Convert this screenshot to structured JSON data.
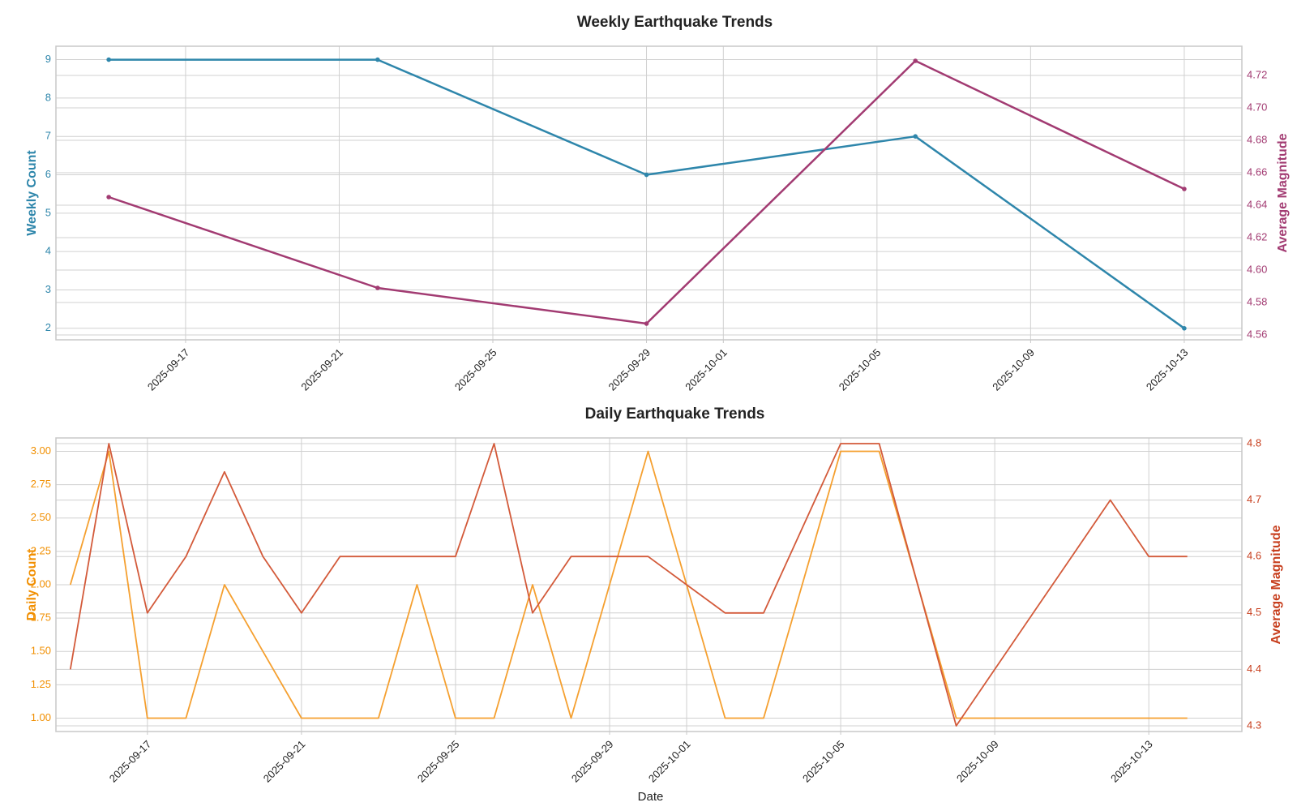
{
  "chart_data": [
    {
      "type": "line",
      "title": "Weekly Earthquake Trends",
      "xlabel": "",
      "x": [
        "2025-09-15",
        "2025-09-22",
        "2025-09-29",
        "2025-10-06",
        "2025-10-13"
      ],
      "xticks": [
        "2025-09-17",
        "2025-09-21",
        "2025-09-25",
        "2025-09-29",
        "2025-10-01",
        "2025-10-05",
        "2025-10-09",
        "2025-10-13"
      ],
      "xlim": [
        "2025-09-13T15:00",
        "2025-10-14T12:00"
      ],
      "grid": true,
      "left_axis": {
        "label": "Weekly Count",
        "color": "#2E86AB",
        "ylim": [
          1.7,
          9.35
        ],
        "ticks": [
          2,
          3,
          4,
          5,
          6,
          7,
          8,
          9
        ],
        "tick_format": "int"
      },
      "right_axis": {
        "label": "Average Magnitude",
        "color": "#A23B72",
        "ylim": [
          4.557,
          4.738
        ],
        "ticks": [
          4.56,
          4.58,
          4.6,
          4.62,
          4.64,
          4.66,
          4.68,
          4.7,
          4.72
        ],
        "tick_format": "2dp"
      },
      "series": [
        {
          "axis": "left",
          "color": "#2E86AB",
          "markers": true,
          "values": [
            9,
            9,
            6,
            7,
            2
          ]
        },
        {
          "axis": "right",
          "color": "#A23B72",
          "markers": true,
          "values": [
            4.645,
            4.589,
            4.567,
            4.729,
            4.65
          ]
        }
      ]
    },
    {
      "type": "line",
      "title": "Daily Earthquake Trends",
      "xlabel": "Date",
      "x": [
        "2025-09-15",
        "2025-09-16",
        "2025-09-17",
        "2025-09-18",
        "2025-09-19",
        "2025-09-20",
        "2025-09-21",
        "2025-09-22",
        "2025-09-23",
        "2025-09-24",
        "2025-09-25",
        "2025-09-26",
        "2025-09-27",
        "2025-09-28",
        "2025-09-29",
        "2025-09-30",
        "2025-10-01",
        "2025-10-02",
        "2025-10-03",
        "2025-10-04",
        "2025-10-05",
        "2025-10-06",
        "2025-10-07",
        "2025-10-08",
        "2025-10-09",
        "2025-10-10",
        "2025-10-11",
        "2025-10-12",
        "2025-10-13",
        "2025-10-14"
      ],
      "xticks": [
        "2025-09-17",
        "2025-09-21",
        "2025-09-25",
        "2025-09-29",
        "2025-10-01",
        "2025-10-05",
        "2025-10-09",
        "2025-10-13"
      ],
      "xlim": [
        "2025-09-14T15:00",
        "2025-10-15T10:00"
      ],
      "grid": true,
      "left_axis": {
        "label": "Daily Count",
        "color": "#F18F01",
        "ylim": [
          0.9,
          3.1
        ],
        "ticks": [
          1.0,
          1.25,
          1.5,
          1.75,
          2.0,
          2.25,
          2.5,
          2.75,
          3.0
        ],
        "tick_format": "2dp"
      },
      "right_axis": {
        "label": "Average Magnitude",
        "color": "#C73E1D",
        "ylim": [
          4.29,
          4.81
        ],
        "ticks": [
          4.3,
          4.4,
          4.5,
          4.6,
          4.7,
          4.8
        ],
        "tick_format": "1dp"
      },
      "series": [
        {
          "axis": "left",
          "color": "#F5A030",
          "markers": false,
          "values": [
            2,
            3,
            1,
            1,
            2,
            1.5,
            1,
            1,
            1,
            2,
            1,
            1,
            2,
            1,
            2,
            3,
            2,
            1,
            1,
            2,
            3,
            3,
            2,
            1,
            1,
            1,
            1,
            1,
            1,
            1
          ]
        },
        {
          "axis": "right",
          "color": "#D35A3A",
          "markers": false,
          "values": [
            4.4,
            4.8,
            4.5,
            4.6,
            4.75,
            4.6,
            4.5,
            4.6,
            4.6,
            4.6,
            4.6,
            4.8,
            4.5,
            4.6,
            4.6,
            4.6,
            4.55,
            4.5,
            4.5,
            4.65,
            4.8,
            4.8,
            4.55,
            4.3,
            4.4,
            4.5,
            4.6,
            4.7,
            4.6,
            4.6
          ]
        }
      ]
    }
  ]
}
